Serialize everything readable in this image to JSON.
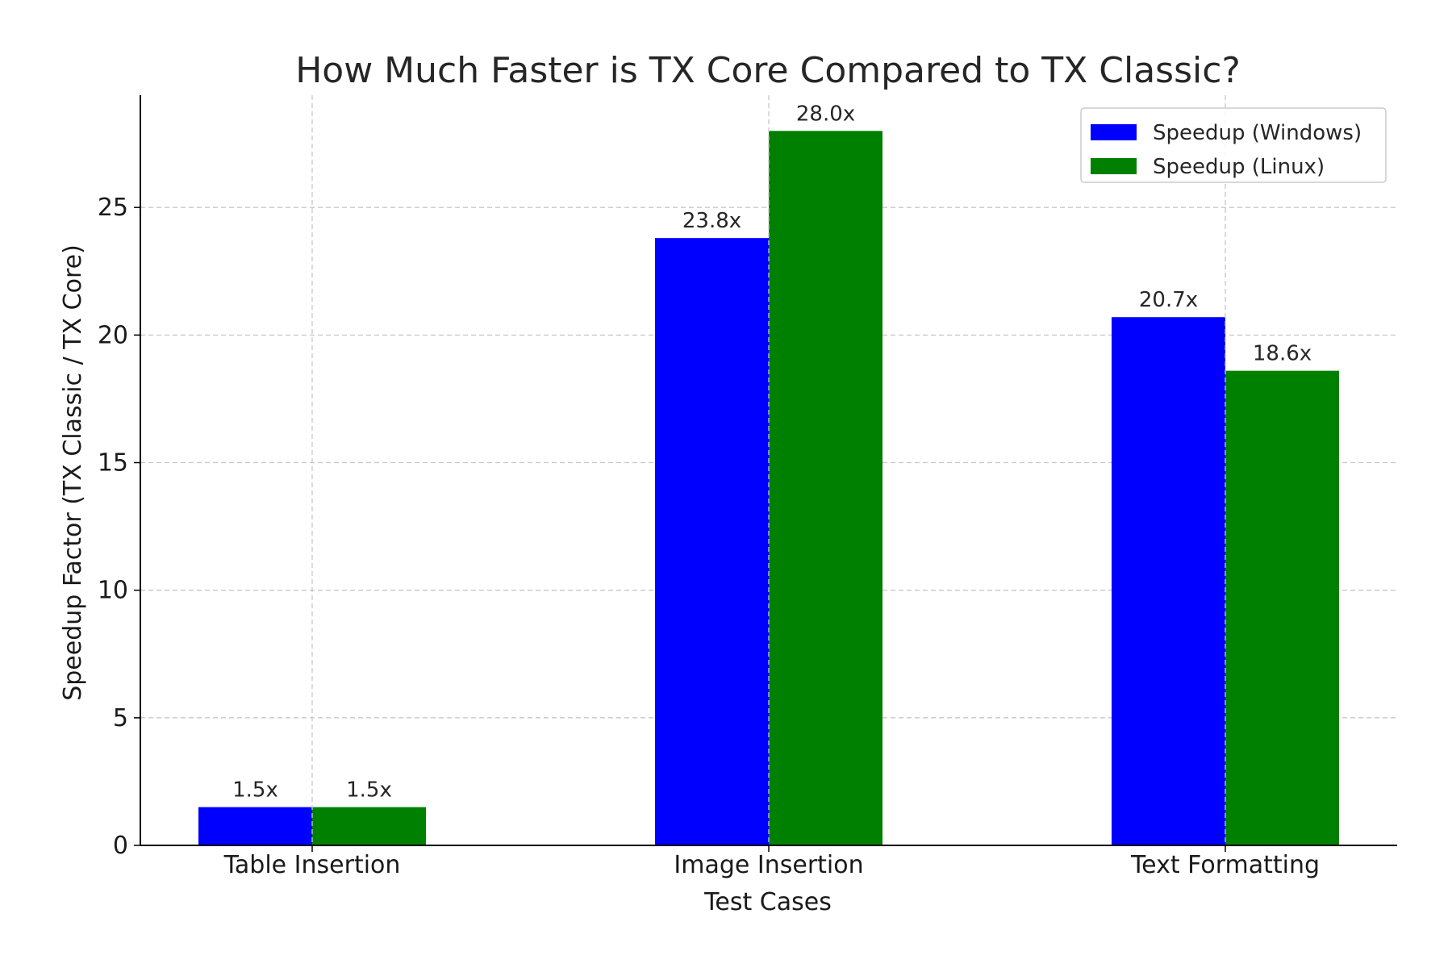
{
  "chart_data": {
    "type": "bar",
    "title": "How Much Faster is TX Core Compared to TX Classic?",
    "xlabel": "Test Cases",
    "ylabel": "Speedup Factor (TX Classic / TX Core)",
    "categories": [
      "Table Insertion",
      "Image Insertion",
      "Text Formatting"
    ],
    "series": [
      {
        "name": "Speedup (Windows)",
        "color": "#0000ff",
        "values": [
          1.5,
          23.8,
          20.7
        ],
        "labels": [
          "1.5x",
          "23.8x",
          "20.7x"
        ]
      },
      {
        "name": "Speedup (Linux)",
        "color": "#008000",
        "values": [
          1.5,
          28.0,
          18.6
        ],
        "labels": [
          "1.5x",
          "28.0x",
          "18.6x"
        ]
      }
    ],
    "ylim": [
      0,
      29.4
    ],
    "yticks": [
      0,
      5,
      10,
      15,
      20,
      25
    ],
    "grid": true,
    "legend": "top-right"
  }
}
